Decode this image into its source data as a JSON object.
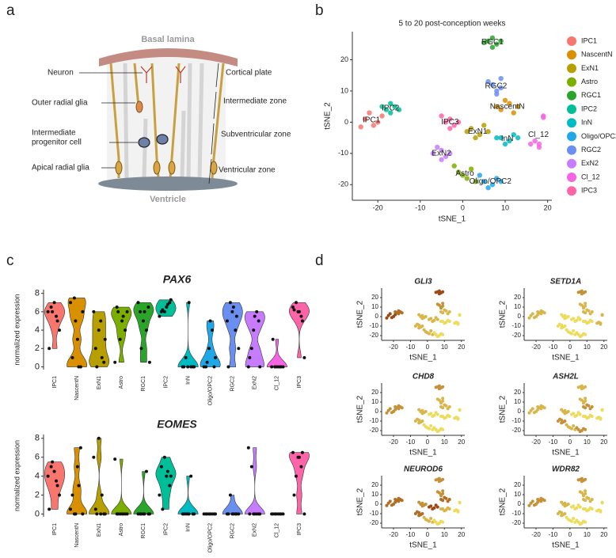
{
  "panel_labels": [
    "a",
    "b",
    "c",
    "d"
  ],
  "diagram": {
    "top_label": "Basal lamina",
    "bottom_label": "Ventricle",
    "cell_labels": [
      [
        "Neuron"
      ],
      [
        "Outer radial glia"
      ],
      [
        "Intermediate",
        "progenitor cell"
      ],
      [
        "Apical radial glia"
      ]
    ],
    "zone_labels": [
      "Cortical plate",
      "Intermediate zone",
      "Subventricular zone",
      "Ventricular zone"
    ]
  },
  "chart_data": [
    {
      "type": "scatter",
      "title": "5 to 20 post-conception weeks",
      "xlabel": "tSNE_1",
      "ylabel": "tSNE_2",
      "xlim": [
        -26,
        21
      ],
      "ylim": [
        -25,
        29
      ],
      "xticks": [
        -20,
        -10,
        0,
        10,
        20
      ],
      "yticks": [
        -20,
        -10,
        0,
        10,
        20
      ],
      "legend": "right",
      "series": [
        {
          "name": "IPC1",
          "color": "#f8766d",
          "x": [
            -23,
            -21,
            -19,
            -22,
            -20,
            -24
          ],
          "y": [
            1,
            -1,
            2,
            3,
            0,
            -1.5
          ]
        },
        {
          "name": "NascentN",
          "color": "#d89000",
          "x": [
            9,
            11,
            12,
            8,
            10,
            13
          ],
          "y": [
            4,
            6,
            3,
            5,
            7,
            5
          ]
        },
        {
          "name": "ExN1",
          "color": "#b79f00",
          "x": [
            2,
            4,
            5,
            1,
            3,
            6
          ],
          "y": [
            -2,
            -4,
            -1,
            -3,
            -5,
            -3
          ]
        },
        {
          "name": "Astro",
          "color": "#7cae00",
          "x": [
            -1,
            1,
            2,
            0,
            3,
            -2
          ],
          "y": [
            -16,
            -18,
            -15,
            -17,
            -19,
            -14
          ]
        },
        {
          "name": "RGC1",
          "color": "#2aa52a",
          "x": [
            6,
            8,
            7,
            5,
            9,
            7
          ],
          "y": [
            26,
            25,
            27,
            25.5,
            26,
            24
          ]
        },
        {
          "name": "IPC2",
          "color": "#00be98",
          "x": [
            -18,
            -16,
            -17,
            -15,
            -19,
            -17
          ],
          "y": [
            4,
            5,
            3,
            4,
            5,
            6
          ]
        },
        {
          "name": "InN",
          "color": "#00bbc4",
          "x": [
            9,
            11,
            12,
            8,
            10,
            13
          ],
          "y": [
            -5,
            -6,
            -4,
            -5,
            -7,
            -5
          ]
        },
        {
          "name": "Oligo/OPC2",
          "color": "#1fa8e8",
          "x": [
            5,
            7,
            8,
            4,
            6,
            9
          ],
          "y": [
            -19,
            -20,
            -18,
            -17,
            -21,
            -19
          ]
        },
        {
          "name": "RGC2",
          "color": "#6b8ff0",
          "x": [
            7,
            8,
            9,
            6,
            8,
            9
          ],
          "y": [
            12,
            10,
            11,
            13,
            9,
            14
          ]
        },
        {
          "name": "ExN2",
          "color": "#c77cff",
          "x": [
            -7,
            -5,
            -4,
            -6,
            -3,
            -5
          ],
          "y": [
            -10,
            -9,
            -11,
            -8,
            -10,
            -12
          ]
        },
        {
          "name": "Cl_12",
          "color": "#f564e3",
          "x": [
            16,
            17,
            18,
            19,
            18,
            19
          ],
          "y": [
            -7,
            -6,
            -8,
            2,
            -7,
            1.5
          ]
        },
        {
          "name": "IPC3",
          "color": "#ff64a8",
          "x": [
            -4,
            -3,
            -2,
            -5,
            -1,
            -3
          ],
          "y": [
            0,
            1,
            -1,
            2,
            0,
            -2
          ]
        }
      ]
    },
    {
      "type": "violin",
      "title": "PAX6",
      "ylabel": "normalized expression",
      "ylim": [
        -0.3,
        8.4
      ],
      "yticks": [
        0,
        2,
        4,
        6,
        8
      ],
      "categories": [
        "IPC1",
        "NascentN",
        "ExN1",
        "Astro",
        "RGC1",
        "IPC2",
        "InN",
        "Oligo/OPC2",
        "RGC2",
        "ExN2",
        "Cl_12",
        "IPC3"
      ],
      "colors": [
        "#f8766d",
        "#d89000",
        "#b79f00",
        "#7cae00",
        "#2aa52a",
        "#00be98",
        "#00bbc4",
        "#1fa8e8",
        "#6b8ff0",
        "#c77cff",
        "#f564e3",
        "#ff64a8"
      ],
      "values": [
        [
          6,
          5.5,
          6.5,
          4,
          7,
          2,
          5,
          6
        ],
        [
          7.5,
          6,
          3,
          1,
          0,
          5,
          7,
          0
        ],
        [
          5,
          2,
          0.5,
          4,
          6,
          1,
          0,
          3
        ],
        [
          6,
          5,
          6.5,
          4,
          3,
          0.5,
          5.5,
          6
        ],
        [
          6,
          6.5,
          5,
          7,
          4,
          2,
          0.5,
          6
        ],
        [
          6.5,
          6,
          7,
          6,
          5.5,
          6.8,
          6.2,
          7.3
        ],
        [
          0,
          0,
          0,
          0,
          1,
          0,
          7,
          0
        ],
        [
          0,
          0,
          2,
          0,
          4,
          0.5,
          1,
          5
        ],
        [
          6,
          5,
          4,
          7,
          2,
          6.5,
          0,
          5.5
        ],
        [
          5,
          4,
          0,
          6,
          2,
          0,
          5.5,
          1
        ],
        [
          0,
          0,
          0,
          0,
          0,
          3,
          0,
          0
        ],
        [
          6,
          6.5,
          5.5,
          7,
          1,
          6,
          6.2,
          5
        ]
      ]
    },
    {
      "type": "violin",
      "title": "EOMES",
      "ylabel": "normalized expression",
      "ylim": [
        -0.3,
        8.4
      ],
      "yticks": [
        0,
        2,
        4,
        6,
        8
      ],
      "categories": [
        "IPC1",
        "NascentN",
        "ExN1",
        "Astro",
        "RGC1",
        "IPC2",
        "InN",
        "Oligo/OPC2",
        "RGC2",
        "ExN2",
        "Cl_12",
        "IPC3"
      ],
      "colors": [
        "#f8766d",
        "#d89000",
        "#b79f00",
        "#7cae00",
        "#2aa52a",
        "#00be98",
        "#00bbc4",
        "#1fa8e8",
        "#6b8ff0",
        "#c77cff",
        "#f564e3",
        "#ff64a8"
      ],
      "values": [
        [
          4,
          3.5,
          5,
          2,
          4.5,
          0.5,
          3,
          5.5
        ],
        [
          0,
          0,
          5,
          2,
          7,
          0,
          0.5,
          3
        ],
        [
          0,
          0.5,
          0,
          8,
          6,
          2,
          0,
          0
        ],
        [
          0,
          0,
          0,
          0,
          0,
          5.8,
          0,
          0
        ],
        [
          0,
          0,
          0,
          0,
          4.5,
          0,
          0,
          0
        ],
        [
          4,
          5,
          3,
          6,
          2,
          4.5,
          0.5,
          4
        ],
        [
          0,
          0,
          0,
          4,
          0,
          0,
          0,
          0
        ],
        [
          0,
          0,
          0,
          0,
          0,
          0,
          0,
          0
        ],
        [
          0,
          0,
          0,
          2,
          0,
          0,
          0,
          0
        ],
        [
          0,
          0,
          7,
          0,
          5,
          0,
          0,
          0
        ],
        [
          0,
          0,
          0,
          0,
          0,
          0,
          0,
          0
        ],
        [
          6,
          6.5,
          5,
          4,
          0,
          6,
          2,
          6.5
        ]
      ]
    },
    {
      "type": "feature",
      "xlabel": "tSNE_1",
      "ylabel": "tSNE_2",
      "xlim": [
        -27,
        22
      ],
      "ylim": [
        -25,
        30
      ],
      "xticks": [
        -20,
        -10,
        0,
        10,
        20
      ],
      "yticks": [
        -20,
        -10,
        0,
        10,
        20
      ],
      "color_scale": [
        "#ffff70",
        "#8b2500"
      ],
      "expression_lim": [
        0,
        3
      ],
      "panels": [
        {
          "title": "GLI3",
          "expression": [
            2.5,
            1,
            1,
            1,
            2.5,
            2,
            0.5,
            0.5,
            1.5,
            1,
            0.5,
            1
          ]
        },
        {
          "title": "SETD1A",
          "expression": [
            1,
            1,
            0.5,
            0.5,
            1.5,
            1,
            0.5,
            0.5,
            1,
            0.5,
            1,
            0.5
          ]
        },
        {
          "title": "CHD8",
          "expression": [
            1.5,
            1,
            0.5,
            0.5,
            1.5,
            1.5,
            0.5,
            0.5,
            1,
            1,
            0.5,
            1
          ]
        },
        {
          "title": "ASH2L",
          "expression": [
            1,
            1.5,
            0.5,
            1,
            1,
            1,
            0.5,
            1.5,
            1,
            1.5,
            0.5,
            1
          ]
        },
        {
          "title": "NEUROD6",
          "expression": [
            2,
            2,
            2.5,
            1,
            1.5,
            2,
            1,
            0.5,
            1.5,
            2,
            0.5,
            1.5
          ]
        },
        {
          "title": "WDR82",
          "expression": [
            1.5,
            1,
            0.5,
            0.5,
            1.5,
            1.5,
            0.5,
            0.5,
            1,
            1,
            0.5,
            1
          ]
        }
      ]
    }
  ]
}
